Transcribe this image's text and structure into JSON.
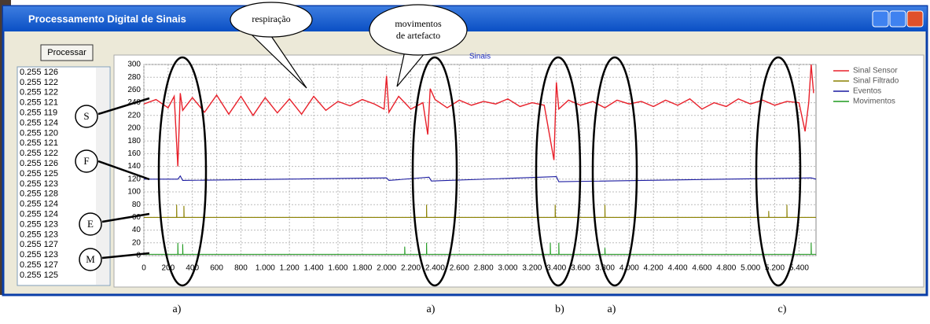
{
  "window": {
    "title": "Processamento Digital de Sinais",
    "button": "Processar",
    "list": [
      "0.255 126",
      "0.255 122",
      "0.255 122",
      "0.255 121",
      "0.255 119",
      "0.255 124",
      "0.255 120",
      "0.255 121",
      "0.255 122",
      "0.255 126",
      "0.255 125",
      "0.255 123",
      "0.255 128",
      "0.255 124",
      "0.255 124",
      "0.255 123",
      "0.255 123",
      "0.255 127",
      "0.255 123",
      "0.255 127",
      "0.255 125"
    ]
  },
  "chart_data": {
    "type": "line",
    "title": "Sinais",
    "xlim": [
      0,
      5540
    ],
    "ylim": [
      0,
      300
    ],
    "yticks": [
      0,
      20,
      40,
      60,
      80,
      100,
      120,
      140,
      160,
      180,
      200,
      220,
      240,
      260,
      280,
      300
    ],
    "xticks": [
      0,
      200,
      400,
      600,
      800,
      {
        "value": 1000,
        "label": "1.000"
      },
      {
        "value": 1200,
        "label": "1.200"
      },
      {
        "value": 1400,
        "label": "1.400"
      },
      {
        "value": 1600,
        "label": "1.600"
      },
      {
        "value": 1800,
        "label": "1.800"
      },
      {
        "value": 2000,
        "label": "2.000"
      },
      {
        "value": 2200,
        "label": "2.200"
      },
      {
        "value": 2400,
        "label": "2.400"
      },
      {
        "value": 2600,
        "label": "2.600"
      },
      {
        "value": 2800,
        "label": "2.800"
      },
      {
        "value": 3000,
        "label": "3.000"
      },
      {
        "value": 3200,
        "label": "3.200"
      },
      {
        "value": 3400,
        "label": "3.400"
      },
      {
        "value": 3600,
        "label": "3.600"
      },
      {
        "value": 3800,
        "label": "3.800"
      },
      {
        "value": 4000,
        "label": "4.000"
      },
      {
        "value": 4200,
        "label": "4.200"
      },
      {
        "value": 4400,
        "label": "4.400"
      },
      {
        "value": 4600,
        "label": "4.600"
      },
      {
        "value": 4800,
        "label": "4.800"
      },
      {
        "value": 5000,
        "label": "5.000"
      },
      {
        "value": 5200,
        "label": "5.200"
      },
      {
        "value": 5400,
        "label": "5.400"
      }
    ],
    "grid": true,
    "legend": "right",
    "series": [
      {
        "name": "Sinal Sensor",
        "color": "#e8202a",
        "x": [
          0,
          100,
          200,
          250,
          280,
          300,
          320,
          400,
          500,
          600,
          700,
          800,
          900,
          1000,
          1100,
          1200,
          1300,
          1400,
          1500,
          1600,
          1700,
          1800,
          1900,
          1980,
          2000,
          2020,
          2100,
          2200,
          2300,
          2340,
          2360,
          2400,
          2500,
          2600,
          2700,
          2800,
          2900,
          3000,
          3100,
          3200,
          3300,
          3380,
          3400,
          3420,
          3500,
          3600,
          3700,
          3800,
          3900,
          4000,
          4100,
          4200,
          4300,
          4400,
          4500,
          4600,
          4700,
          4800,
          4900,
          5000,
          5100,
          5200,
          5300,
          5400,
          5450,
          5480,
          5500,
          5520
        ],
        "values": [
          238,
          245,
          232,
          250,
          140,
          255,
          228,
          248,
          225,
          252,
          222,
          250,
          220,
          248,
          224,
          246,
          222,
          250,
          228,
          242,
          235,
          245,
          238,
          230,
          282,
          225,
          250,
          230,
          240,
          190,
          262,
          245,
          232,
          244,
          236,
          242,
          238,
          246,
          234,
          240,
          236,
          150,
          272,
          230,
          244,
          236,
          242,
          232,
          244,
          238,
          242,
          234,
          244,
          236,
          246,
          230,
          240,
          234,
          246,
          238,
          244,
          236,
          242,
          240,
          195,
          240,
          300,
          255
        ]
      },
      {
        "name": "Sinal Filtrado",
        "color": "#8a8000",
        "x": [
          0,
          270,
          270,
          272,
          330,
          330,
          332,
          2330,
          2330,
          2332,
          3390,
          3390,
          3392,
          3800,
          3800,
          3802,
          5150,
          5150,
          5152,
          5300,
          5300,
          5302,
          5540
        ],
        "values": [
          60,
          60,
          80,
          60,
          60,
          78,
          60,
          60,
          80,
          60,
          60,
          80,
          60,
          60,
          80,
          60,
          60,
          70,
          60,
          60,
          80,
          60,
          60
        ]
      },
      {
        "name": "Eventos",
        "color": "#1a1aa0",
        "x": [
          0,
          280,
          300,
          320,
          2000,
          2020,
          2350,
          2370,
          3400,
          3420,
          5500,
          5540
        ],
        "values": [
          120,
          120,
          125,
          118,
          122,
          118,
          123,
          117,
          124,
          116,
          122,
          120
        ]
      },
      {
        "name": "Movimentos",
        "color": "#1f9a1f",
        "x": [
          0,
          280,
          280,
          282,
          320,
          320,
          322,
          2150,
          2150,
          2152,
          2330,
          2330,
          2332,
          3350,
          3350,
          3352,
          3420,
          3420,
          3422,
          3800,
          3800,
          3802,
          5500,
          5500,
          5502,
          5540
        ],
        "values": [
          2,
          2,
          20,
          2,
          2,
          18,
          2,
          2,
          14,
          2,
          2,
          20,
          2,
          2,
          20,
          2,
          2,
          20,
          2,
          2,
          12,
          2,
          2,
          20,
          2,
          2
        ]
      }
    ]
  },
  "annotations": {
    "callouts": [
      "respiração",
      "movimentos",
      "de artefacto"
    ],
    "markers": [
      "S",
      "F",
      "E",
      "M"
    ],
    "labels": [
      "a)",
      "a)",
      "b)",
      "a)",
      "c)"
    ]
  }
}
